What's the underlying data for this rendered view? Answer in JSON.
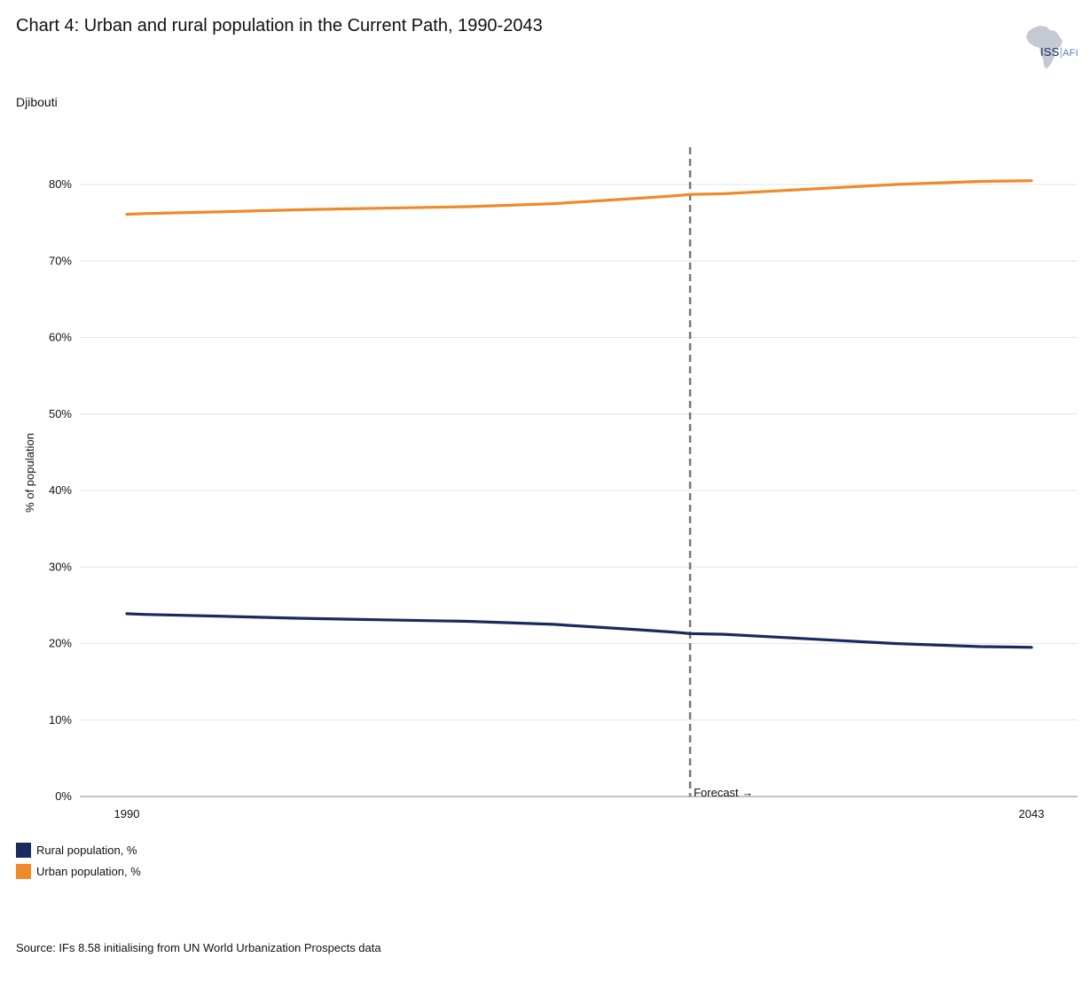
{
  "title": "Chart 4: Urban and rural population in the Current Path, 1990-2043",
  "subtitle": "Djibouti",
  "logo": {
    "primary": "ISS",
    "separator": "|",
    "secondary": "AFI"
  },
  "source": "Source: IFs 8.58 initialising from UN World Urbanization Prospects data",
  "forecast_label": "Forecast →",
  "colors": {
    "rural": "#1b2a5c",
    "urban": "#f0892a",
    "grid": "#e4e4e4",
    "axis": "#888888",
    "forecast_line": "#777777",
    "logo_map": "#c4c9d2"
  },
  "chart_data": {
    "type": "line",
    "title": "Chart 4: Urban and rural population in the Current Path, 1990-2043",
    "ylabel": "% of population",
    "xlabel": "",
    "xlim": [
      1990,
      2043
    ],
    "ylim": [
      0,
      85
    ],
    "x_ticks": [
      1990,
      2043
    ],
    "y_ticks": [
      0,
      10,
      20,
      30,
      40,
      50,
      60,
      70,
      80
    ],
    "y_tick_suffix": "%",
    "forecast_start": 2023,
    "grid": true,
    "legend_position": "bottom-left",
    "x": [
      1990,
      1991,
      1995,
      2000,
      2005,
      2010,
      2015,
      2020,
      2022,
      2023,
      2025,
      2030,
      2035,
      2040,
      2043
    ],
    "series": [
      {
        "name": "Rural population, %",
        "color": "#1b2a5c",
        "values": [
          23.9,
          23.8,
          23.6,
          23.3,
          23.1,
          22.9,
          22.5,
          21.8,
          21.5,
          21.3,
          21.2,
          20.6,
          20.0,
          19.6,
          19.5
        ]
      },
      {
        "name": "Urban population, %",
        "color": "#f0892a",
        "values": [
          76.1,
          76.2,
          76.4,
          76.7,
          76.9,
          77.1,
          77.5,
          78.2,
          78.5,
          78.7,
          78.8,
          79.4,
          80.0,
          80.4,
          80.5
        ]
      }
    ]
  }
}
